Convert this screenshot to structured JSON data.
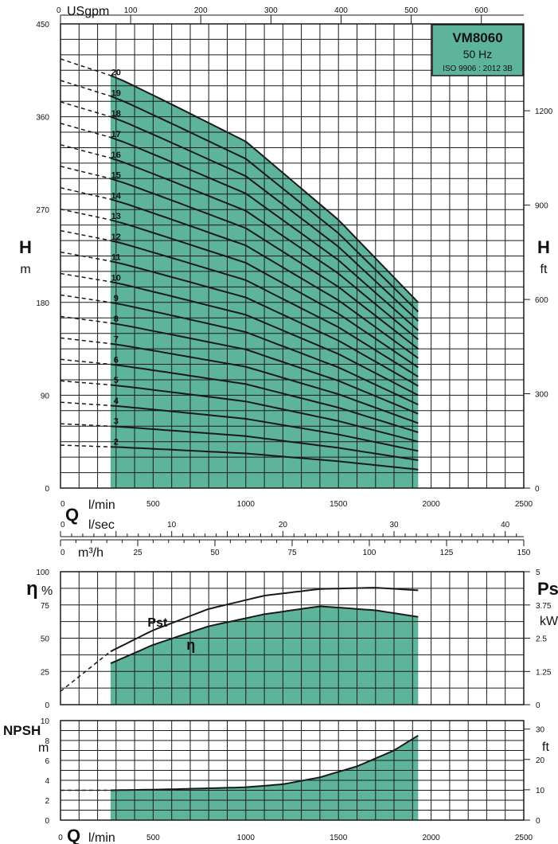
{
  "chart_data": [
    {
      "type": "area",
      "title_box": {
        "model": "VM8060",
        "frequency": "50 Hz",
        "standard": "ISO 9906 : 2012 3B"
      },
      "x": {
        "label_q": "Q",
        "unit": "l/min",
        "range": [
          0,
          2500
        ],
        "ticks": [
          0,
          500,
          1000,
          1500,
          2000,
          2500
        ]
      },
      "x_usgpm": {
        "label": "USgpm",
        "ticks": [
          0,
          100,
          200,
          300,
          400,
          500,
          600
        ]
      },
      "x_lsec": {
        "label": "l/sec",
        "ticks": [
          0,
          10,
          20,
          30,
          40
        ]
      },
      "x_m3h": {
        "label": "m³/h",
        "ticks": [
          0,
          25,
          50,
          75,
          100,
          125,
          150
        ]
      },
      "y_left": {
        "label": "H",
        "unit": "m",
        "range": [
          0,
          450
        ],
        "ticks": [
          0,
          90,
          180,
          270,
          360,
          450
        ]
      },
      "y_right": {
        "label": "H",
        "unit": "ft",
        "ticks": [
          0,
          300,
          600,
          900,
          1200
        ]
      },
      "operating_range": [
        270,
        1930
      ],
      "per_stage_head": {
        "q": [
          0,
          270,
          350,
          600,
          1000,
          1500,
          1930
        ],
        "h": [
          20.8,
          20.0,
          19.7,
          18.6,
          16.8,
          13.0,
          9.0
        ]
      },
      "stages": [
        2,
        3,
        4,
        5,
        6,
        7,
        8,
        9,
        10,
        11,
        12,
        13,
        14,
        15,
        16,
        17,
        18,
        19,
        20
      ],
      "series": [
        {
          "name": "2",
          "q_head": [
            [
              0,
              41.6
            ],
            [
              270,
              40
            ],
            [
              1000,
              33.6
            ],
            [
              1930,
              18
            ]
          ]
        },
        {
          "name": "3",
          "q_head": [
            [
              0,
              62.4
            ],
            [
              270,
              60
            ],
            [
              1000,
              50.4
            ],
            [
              1930,
              27
            ]
          ]
        },
        {
          "name": "4",
          "q_head": [
            [
              0,
              83.2
            ],
            [
              270,
              80
            ],
            [
              1000,
              67.2
            ],
            [
              1930,
              36
            ]
          ]
        },
        {
          "name": "5",
          "q_head": [
            [
              0,
              104
            ],
            [
              270,
              100
            ],
            [
              1000,
              84
            ],
            [
              1930,
              45
            ]
          ]
        },
        {
          "name": "6",
          "q_head": [
            [
              0,
              124.8
            ],
            [
              270,
              120
            ],
            [
              1000,
              100.8
            ],
            [
              1930,
              54
            ]
          ]
        },
        {
          "name": "7",
          "q_head": [
            [
              0,
              145.6
            ],
            [
              270,
              140
            ],
            [
              1000,
              117.6
            ],
            [
              1930,
              63
            ]
          ]
        },
        {
          "name": "8",
          "q_head": [
            [
              0,
              166.4
            ],
            [
              270,
              160
            ],
            [
              1000,
              134.4
            ],
            [
              1930,
              72
            ]
          ]
        },
        {
          "name": "9",
          "q_head": [
            [
              0,
              187.2
            ],
            [
              270,
              180
            ],
            [
              1000,
              151.2
            ],
            [
              1930,
              81
            ]
          ]
        },
        {
          "name": "10",
          "q_head": [
            [
              0,
              208
            ],
            [
              270,
              200
            ],
            [
              1000,
              168
            ],
            [
              1930,
              90
            ]
          ]
        },
        {
          "name": "11",
          "q_head": [
            [
              0,
              228.8
            ],
            [
              270,
              220
            ],
            [
              1000,
              184.8
            ],
            [
              1930,
              99
            ]
          ]
        },
        {
          "name": "12",
          "q_head": [
            [
              0,
              249.6
            ],
            [
              270,
              240
            ],
            [
              1000,
              201.6
            ],
            [
              1930,
              108
            ]
          ]
        },
        {
          "name": "13",
          "q_head": [
            [
              0,
              270.4
            ],
            [
              270,
              260
            ],
            [
              1000,
              218.4
            ],
            [
              1930,
              117
            ]
          ]
        },
        {
          "name": "14",
          "q_head": [
            [
              0,
              291.2
            ],
            [
              270,
              280
            ],
            [
              1000,
              235.2
            ],
            [
              1930,
              126
            ]
          ]
        },
        {
          "name": "15",
          "q_head": [
            [
              0,
              312
            ],
            [
              270,
              300
            ],
            [
              1000,
              252
            ],
            [
              1930,
              135
            ]
          ]
        },
        {
          "name": "16",
          "q_head": [
            [
              0,
              332.8
            ],
            [
              270,
              320
            ],
            [
              1000,
              268.8
            ],
            [
              1930,
              144
            ]
          ]
        },
        {
          "name": "17",
          "q_head": [
            [
              0,
              353.6
            ],
            [
              270,
              340
            ],
            [
              1000,
              285.6
            ],
            [
              1930,
              153
            ]
          ]
        },
        {
          "name": "18",
          "q_head": [
            [
              0,
              374.4
            ],
            [
              270,
              360
            ],
            [
              1000,
              302.4
            ],
            [
              1930,
              162
            ]
          ]
        },
        {
          "name": "19",
          "q_head": [
            [
              0,
              395.2
            ],
            [
              270,
              380
            ],
            [
              1000,
              319.2
            ],
            [
              1930,
              171
            ]
          ]
        },
        {
          "name": "20",
          "q_head": [
            [
              0,
              416
            ],
            [
              270,
              400
            ],
            [
              1000,
              336
            ],
            [
              1930,
              180
            ]
          ]
        }
      ]
    },
    {
      "type": "area",
      "y_left": {
        "label": "η",
        "unit": "%",
        "range": [
          0,
          100
        ],
        "ticks": [
          0,
          25,
          50,
          75,
          100
        ]
      },
      "y_right": {
        "label": "Ps",
        "unit": "kW",
        "ticks": [
          "0",
          "1.25",
          "2.5",
          "3.75",
          "5"
        ]
      },
      "x": {
        "range": [
          0,
          2500
        ]
      },
      "series": [
        {
          "name": "η",
          "q": [
            270,
            500,
            800,
            1100,
            1400,
            1700,
            1930
          ],
          "values": [
            31,
            45,
            59,
            68,
            74,
            71,
            66
          ]
        },
        {
          "name": "Pst",
          "q": [
            0,
            270,
            500,
            800,
            1100,
            1400,
            1700,
            1930
          ],
          "values": [
            10,
            40,
            56,
            72,
            82,
            87,
            88,
            86
          ]
        }
      ]
    },
    {
      "type": "area",
      "y_left": {
        "label": "NPSH",
        "unit": "m",
        "range": [
          0,
          10
        ],
        "ticks": [
          0,
          2,
          4,
          6,
          8,
          10
        ]
      },
      "y_right": {
        "label": "ft",
        "ticks": [
          0,
          10,
          20,
          30
        ]
      },
      "x": {
        "label_q": "Q",
        "unit": "l/min",
        "range": [
          0,
          2500
        ],
        "ticks": [
          0,
          500,
          1000,
          1500,
          2000,
          2500
        ]
      },
      "series": [
        {
          "name": "NPSH",
          "q": [
            0,
            270,
            600,
            1000,
            1200,
            1400,
            1600,
            1800,
            1930
          ],
          "values": [
            3.0,
            3.0,
            3.1,
            3.3,
            3.6,
            4.3,
            5.4,
            7.0,
            8.5
          ]
        }
      ]
    }
  ],
  "colors": {
    "fill": "#5db49a",
    "line": "#1a1a1a",
    "grid": "#1a1a1a",
    "box_fill": "#5db49a"
  }
}
